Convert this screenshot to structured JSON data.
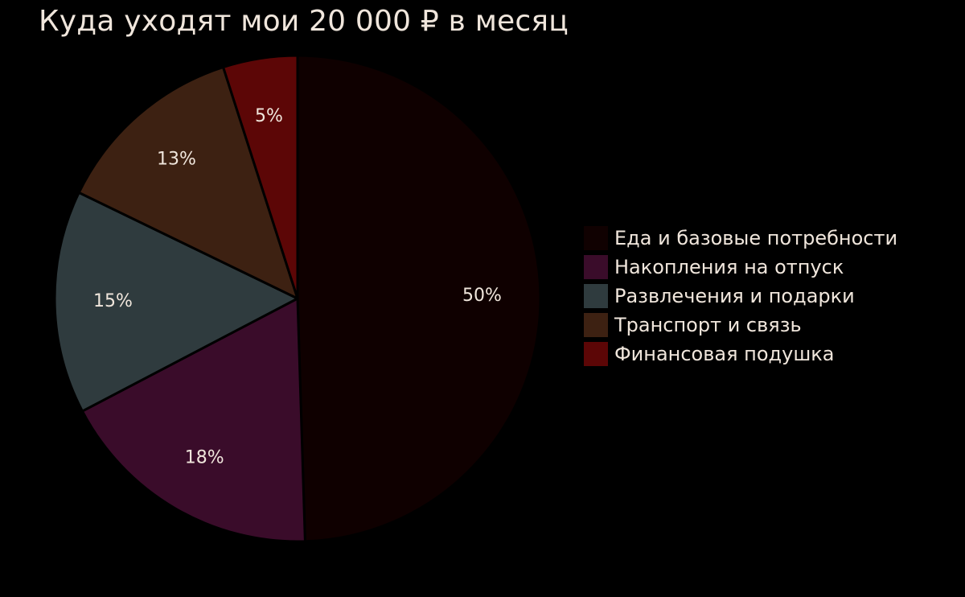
{
  "chart_data": {
    "type": "pie",
    "title": "Куда уходят мои 20 000 ₽ в месяц",
    "start": "top",
    "direction": "clockwise",
    "legend_position": "right",
    "slices": [
      {
        "name": "Еда и базовые потребности",
        "value": 50,
        "label": "50%",
        "color": "#0f0000"
      },
      {
        "name": "Накопления на отпуск",
        "value": 18,
        "label": "18%",
        "color": "#3a0c2a"
      },
      {
        "name": "Развлечения и подарки",
        "value": 15,
        "label": "15%",
        "color": "#2f3b3e"
      },
      {
        "name": "Транспорт и связь",
        "value": 13,
        "label": "13%",
        "color": "#3d2112"
      },
      {
        "name": "Финансовая подушка",
        "value": 5,
        "label": "5%",
        "color": "#5c0606"
      }
    ]
  }
}
